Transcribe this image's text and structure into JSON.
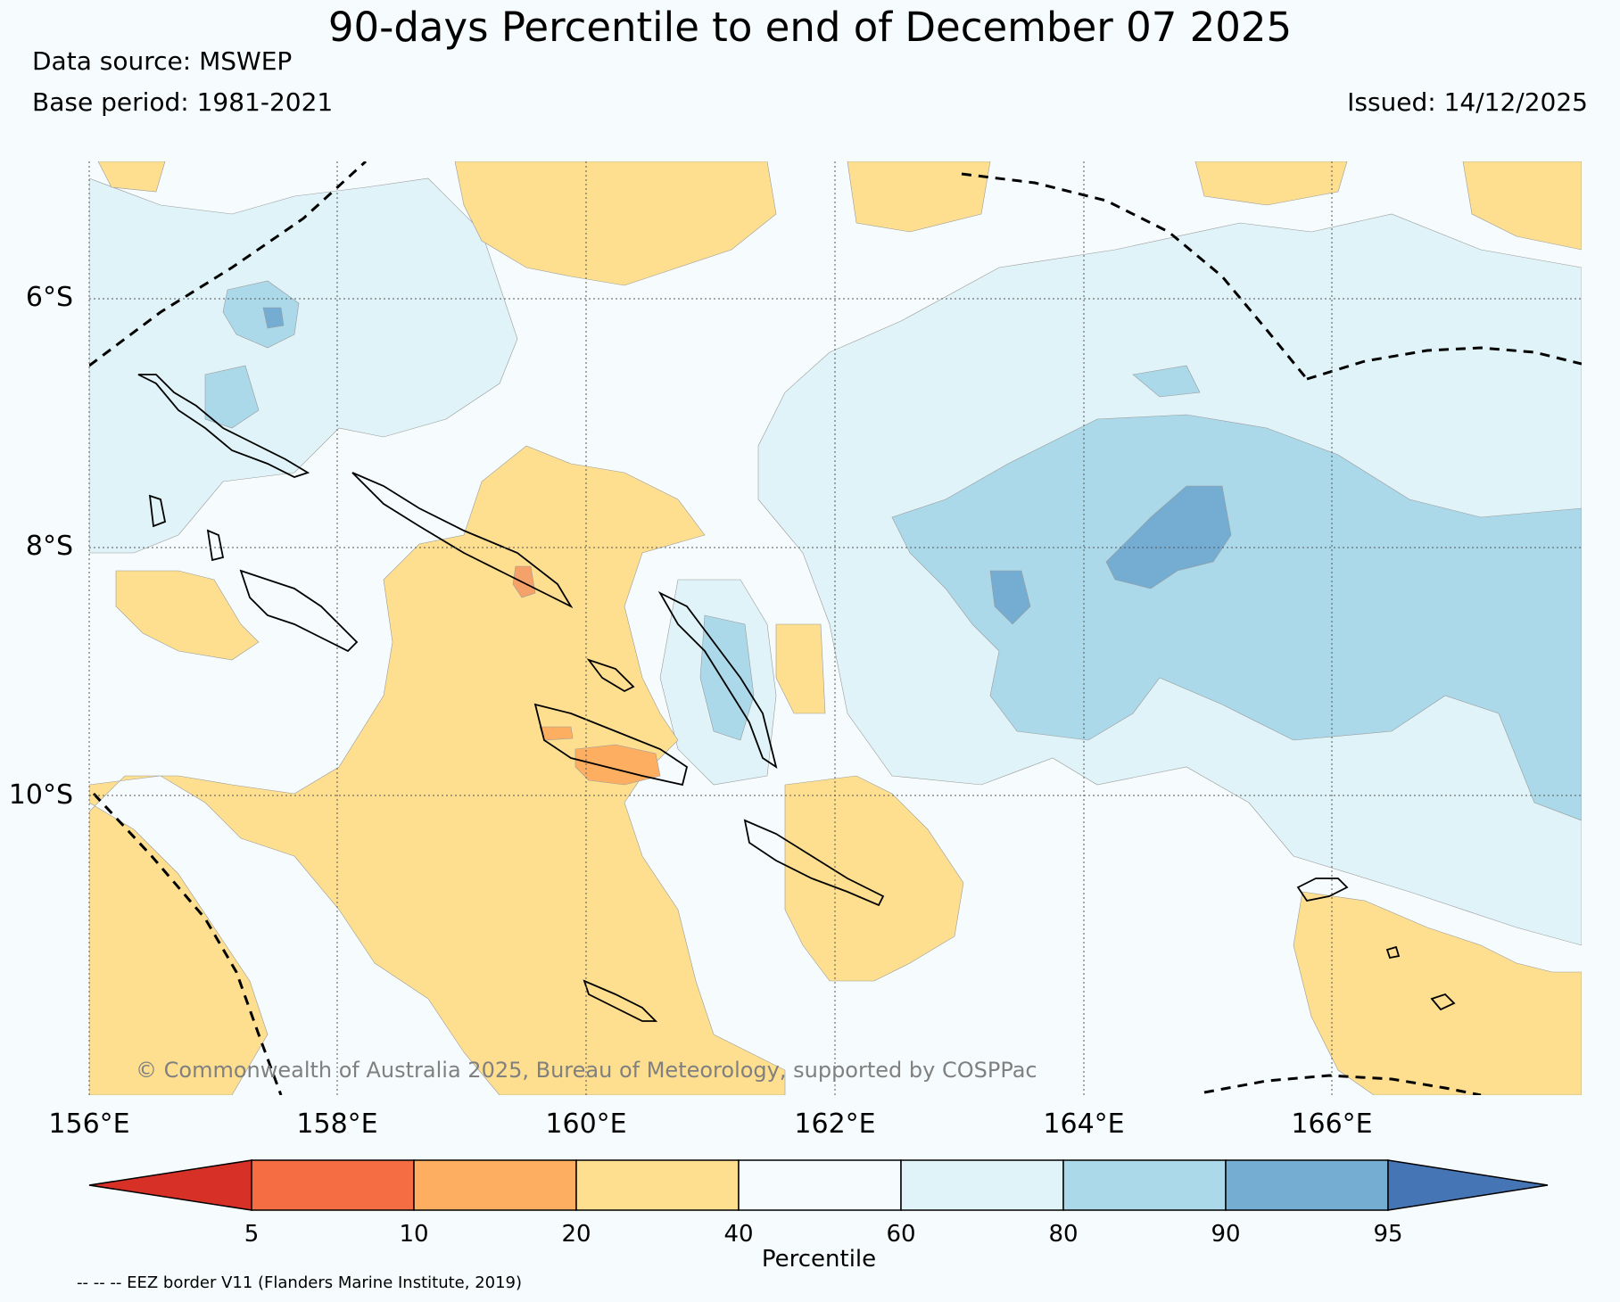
{
  "header": {
    "title": "90-days Percentile to end of December 07 2025",
    "data_source": "Data source: MSWEP",
    "base_period": "Base period: 1981-2021",
    "issued": "Issued: 14/12/2025"
  },
  "map": {
    "lat_labels": [
      "6°S",
      "8°S",
      "10°S"
    ],
    "lon_labels": [
      "156°E",
      "158°E",
      "160°E",
      "162°E",
      "164°E",
      "166°E"
    ],
    "copyright": "© Commonwealth of Australia 2025, Bureau of Meteorology, supported by COSPPac",
    "extent": {
      "lon_min": 156,
      "lon_max": 168,
      "lat_min": -12.4,
      "lat_max": -4.9
    },
    "colors": {
      "p20_40": "#fedf90",
      "p10_20": "#fdae61",
      "p5_10": "#f46d43",
      "p60_80": "#e0f3f8",
      "p80_90": "#abd9e9",
      "p90_95": "#74add1",
      "p40_60": "#f6fcfd"
    }
  },
  "colorbar": {
    "label": "Percentile",
    "ticks": [
      "5",
      "10",
      "20",
      "40",
      "60",
      "80",
      "90",
      "95"
    ],
    "colors": [
      "#d73027",
      "#f46d43",
      "#fdae61",
      "#fedf90",
      "#f6fcfd",
      "#e0f3f8",
      "#abd9e9",
      "#74add1",
      "#4575b4"
    ]
  },
  "footer": {
    "eez_note": "-- -- -- EEZ border V11 (Flanders Marine Institute, 2019)"
  }
}
